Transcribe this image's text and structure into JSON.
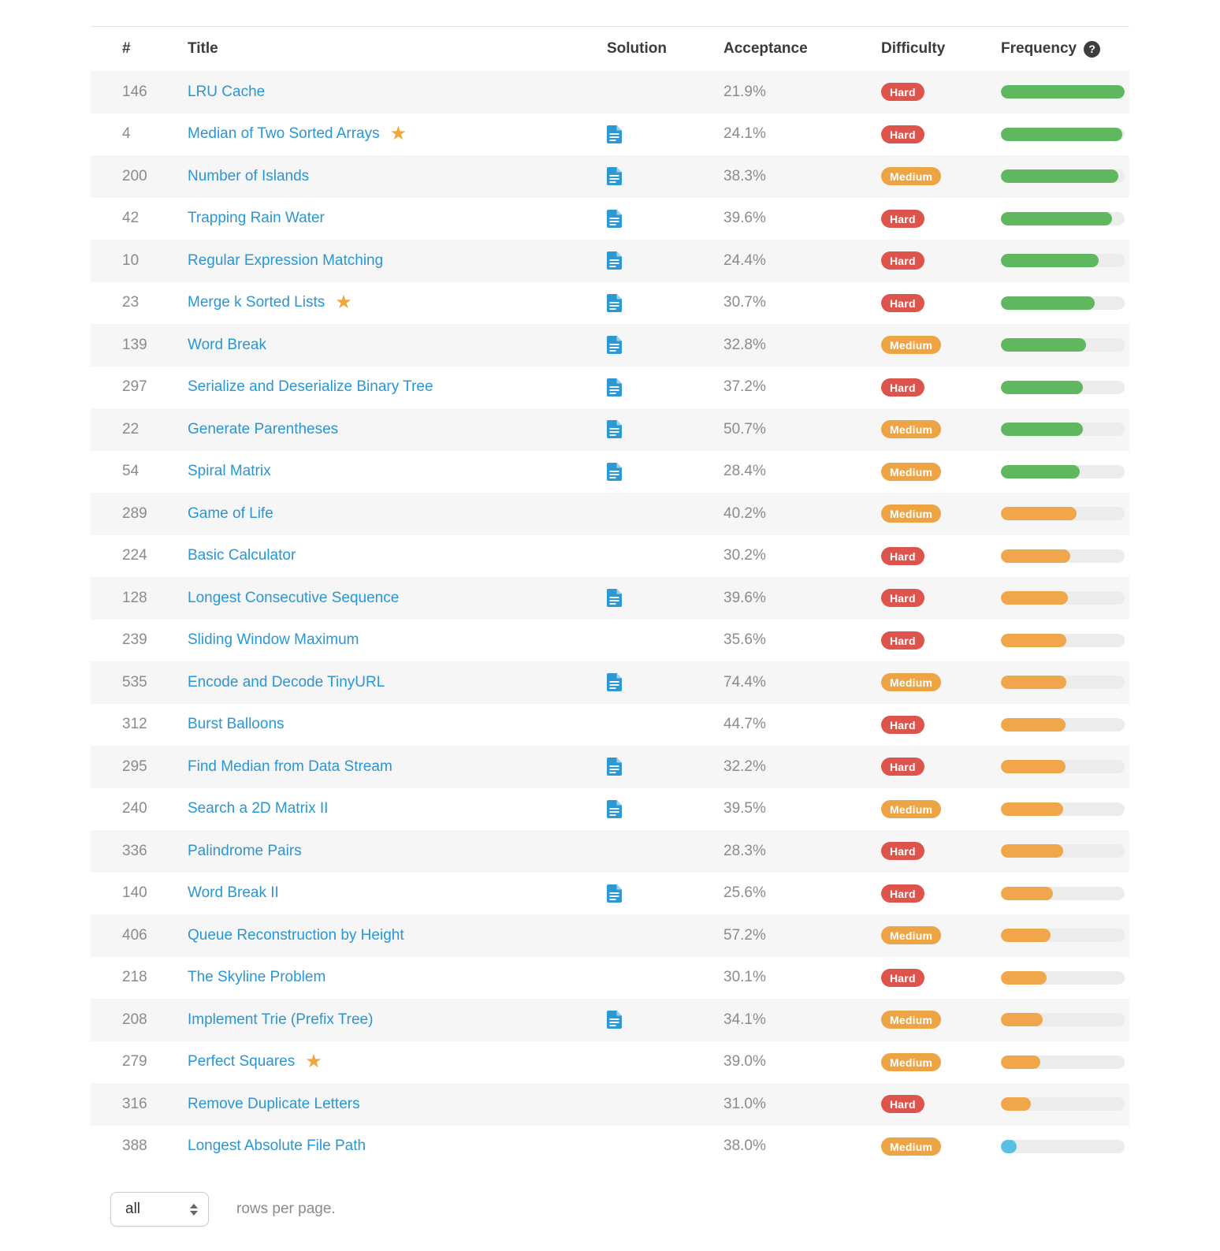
{
  "table": {
    "columns": {
      "num": "#",
      "title": "Title",
      "solution": "Solution",
      "acceptance": "Acceptance",
      "difficulty": "Difficulty",
      "frequency": "Frequency"
    },
    "frequency_help": "?",
    "rows": [
      {
        "num": "146",
        "title": "LRU Cache",
        "starred": false,
        "has_solution": false,
        "acceptance": "21.9%",
        "difficulty": "Hard",
        "frequency_pct": 100,
        "frequency_color": "green"
      },
      {
        "num": "4",
        "title": "Median of Two Sorted Arrays",
        "starred": true,
        "has_solution": true,
        "acceptance": "24.1%",
        "difficulty": "Hard",
        "frequency_pct": 98,
        "frequency_color": "green"
      },
      {
        "num": "200",
        "title": "Number of Islands",
        "starred": false,
        "has_solution": true,
        "acceptance": "38.3%",
        "difficulty": "Medium",
        "frequency_pct": 95,
        "frequency_color": "green"
      },
      {
        "num": "42",
        "title": "Trapping Rain Water",
        "starred": false,
        "has_solution": true,
        "acceptance": "39.6%",
        "difficulty": "Hard",
        "frequency_pct": 90,
        "frequency_color": "green"
      },
      {
        "num": "10",
        "title": "Regular Expression Matching",
        "starred": false,
        "has_solution": true,
        "acceptance": "24.4%",
        "difficulty": "Hard",
        "frequency_pct": 79,
        "frequency_color": "green"
      },
      {
        "num": "23",
        "title": "Merge k Sorted Lists",
        "starred": true,
        "has_solution": true,
        "acceptance": "30.7%",
        "difficulty": "Hard",
        "frequency_pct": 76,
        "frequency_color": "green"
      },
      {
        "num": "139",
        "title": "Word Break",
        "starred": false,
        "has_solution": true,
        "acceptance": "32.8%",
        "difficulty": "Medium",
        "frequency_pct": 69,
        "frequency_color": "green"
      },
      {
        "num": "297",
        "title": "Serialize and Deserialize Binary Tree",
        "starred": false,
        "has_solution": true,
        "acceptance": "37.2%",
        "difficulty": "Hard",
        "frequency_pct": 66,
        "frequency_color": "green"
      },
      {
        "num": "22",
        "title": "Generate Parentheses",
        "starred": false,
        "has_solution": true,
        "acceptance": "50.7%",
        "difficulty": "Medium",
        "frequency_pct": 66,
        "frequency_color": "green"
      },
      {
        "num": "54",
        "title": "Spiral Matrix",
        "starred": false,
        "has_solution": true,
        "acceptance": "28.4%",
        "difficulty": "Medium",
        "frequency_pct": 64,
        "frequency_color": "green"
      },
      {
        "num": "289",
        "title": "Game of Life",
        "starred": false,
        "has_solution": false,
        "acceptance": "40.2%",
        "difficulty": "Medium",
        "frequency_pct": 61,
        "frequency_color": "orange"
      },
      {
        "num": "224",
        "title": "Basic Calculator",
        "starred": false,
        "has_solution": false,
        "acceptance": "30.2%",
        "difficulty": "Hard",
        "frequency_pct": 56,
        "frequency_color": "orange"
      },
      {
        "num": "128",
        "title": "Longest Consecutive Sequence",
        "starred": false,
        "has_solution": true,
        "acceptance": "39.6%",
        "difficulty": "Hard",
        "frequency_pct": 54,
        "frequency_color": "orange"
      },
      {
        "num": "239",
        "title": "Sliding Window Maximum",
        "starred": false,
        "has_solution": false,
        "acceptance": "35.6%",
        "difficulty": "Hard",
        "frequency_pct": 53,
        "frequency_color": "orange"
      },
      {
        "num": "535",
        "title": "Encode and Decode TinyURL",
        "starred": false,
        "has_solution": true,
        "acceptance": "74.4%",
        "difficulty": "Medium",
        "frequency_pct": 53,
        "frequency_color": "orange"
      },
      {
        "num": "312",
        "title": "Burst Balloons",
        "starred": false,
        "has_solution": false,
        "acceptance": "44.7%",
        "difficulty": "Hard",
        "frequency_pct": 52,
        "frequency_color": "orange"
      },
      {
        "num": "295",
        "title": "Find Median from Data Stream",
        "starred": false,
        "has_solution": true,
        "acceptance": "32.2%",
        "difficulty": "Hard",
        "frequency_pct": 52,
        "frequency_color": "orange"
      },
      {
        "num": "240",
        "title": "Search a 2D Matrix II",
        "starred": false,
        "has_solution": true,
        "acceptance": "39.5%",
        "difficulty": "Medium",
        "frequency_pct": 50,
        "frequency_color": "orange"
      },
      {
        "num": "336",
        "title": "Palindrome Pairs",
        "starred": false,
        "has_solution": false,
        "acceptance": "28.3%",
        "difficulty": "Hard",
        "frequency_pct": 50,
        "frequency_color": "orange"
      },
      {
        "num": "140",
        "title": "Word Break II",
        "starred": false,
        "has_solution": true,
        "acceptance": "25.6%",
        "difficulty": "Hard",
        "frequency_pct": 42,
        "frequency_color": "orange"
      },
      {
        "num": "406",
        "title": "Queue Reconstruction by Height",
        "starred": false,
        "has_solution": false,
        "acceptance": "57.2%",
        "difficulty": "Medium",
        "frequency_pct": 40,
        "frequency_color": "orange"
      },
      {
        "num": "218",
        "title": "The Skyline Problem",
        "starred": false,
        "has_solution": false,
        "acceptance": "30.1%",
        "difficulty": "Hard",
        "frequency_pct": 37,
        "frequency_color": "orange"
      },
      {
        "num": "208",
        "title": "Implement Trie (Prefix Tree)",
        "starred": false,
        "has_solution": true,
        "acceptance": "34.1%",
        "difficulty": "Medium",
        "frequency_pct": 34,
        "frequency_color": "orange"
      },
      {
        "num": "279",
        "title": "Perfect Squares",
        "starred": true,
        "has_solution": false,
        "acceptance": "39.0%",
        "difficulty": "Medium",
        "frequency_pct": 32,
        "frequency_color": "orange"
      },
      {
        "num": "316",
        "title": "Remove Duplicate Letters",
        "starred": false,
        "has_solution": false,
        "acceptance": "31.0%",
        "difficulty": "Hard",
        "frequency_pct": 24,
        "frequency_color": "orange"
      },
      {
        "num": "388",
        "title": "Longest Absolute File Path",
        "starred": false,
        "has_solution": false,
        "acceptance": "38.0%",
        "difficulty": "Medium",
        "frequency_pct": 13,
        "frequency_color": "blue"
      }
    ]
  },
  "footer": {
    "rows_per_page_value": "all",
    "rows_per_page_label": "rows per page."
  },
  "colors": {
    "link": "#2a96d2",
    "star": "#f0a63e",
    "difficulty": {
      "hard": "#dc544c",
      "medium": "#eda444"
    },
    "bar": {
      "green": "#5fb85f",
      "orange": "#f0a64a",
      "blue": "#58c1e3"
    },
    "track": "#ececec"
  }
}
